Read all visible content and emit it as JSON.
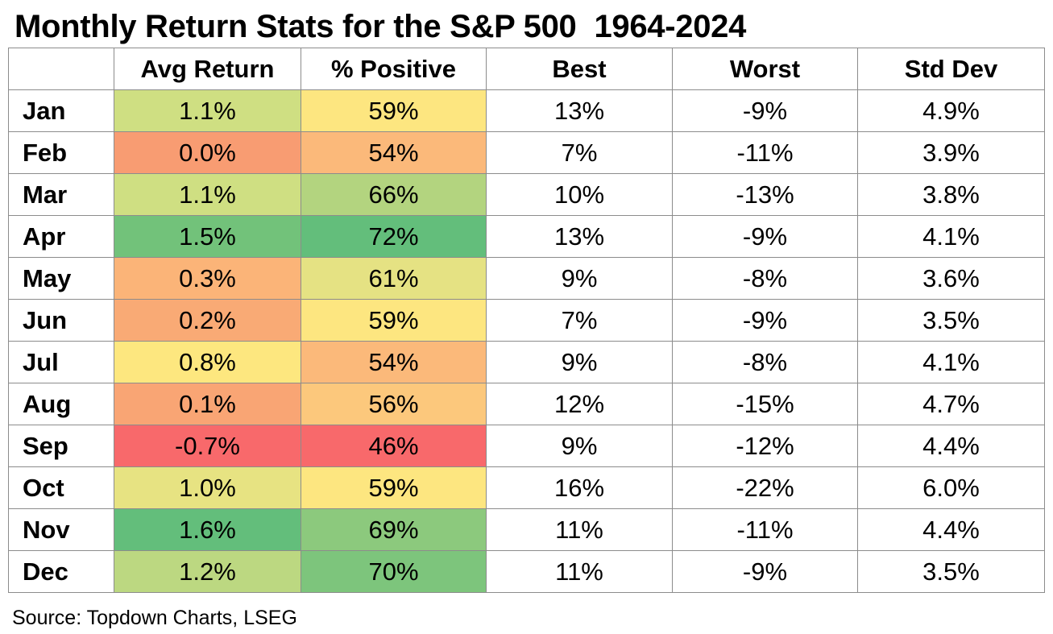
{
  "title": {
    "main": "Monthly Return Stats for the S&P 500",
    "range": "1964-2024"
  },
  "source": "Source: Topdown Charts, LSEG",
  "chart_data": {
    "type": "table",
    "columns": [
      "",
      "Avg Return",
      "% Positive",
      "Best",
      "Worst",
      "Std Dev"
    ],
    "rows": [
      {
        "month": "Jan",
        "avg_return": "1.1%",
        "pct_positive": "59%",
        "best": "13%",
        "worst": "-9%",
        "std_dev": "4.9%",
        "avg_color": "#cfdf82",
        "pos_color": "#fde680"
      },
      {
        "month": "Feb",
        "avg_return": "0.0%",
        "pct_positive": "54%",
        "best": "7%",
        "worst": "-11%",
        "std_dev": "3.9%",
        "avg_color": "#f89c72",
        "pos_color": "#fbb97a"
      },
      {
        "month": "Mar",
        "avg_return": "1.1%",
        "pct_positive": "66%",
        "best": "10%",
        "worst": "-13%",
        "std_dev": "3.8%",
        "avg_color": "#cfdf82",
        "pos_color": "#b3d47f"
      },
      {
        "month": "Apr",
        "avg_return": "1.5%",
        "pct_positive": "72%",
        "best": "13%",
        "worst": "-9%",
        "std_dev": "4.1%",
        "avg_color": "#72c27a",
        "pos_color": "#63be7b"
      },
      {
        "month": "May",
        "avg_return": "0.3%",
        "pct_positive": "61%",
        "best": "9%",
        "worst": "-8%",
        "std_dev": "3.6%",
        "avg_color": "#fbb478",
        "pos_color": "#e5e283"
      },
      {
        "month": "Jun",
        "avg_return": "0.2%",
        "pct_positive": "59%",
        "best": "7%",
        "worst": "-9%",
        "std_dev": "3.5%",
        "avg_color": "#f9aa75",
        "pos_color": "#fde680"
      },
      {
        "month": "Jul",
        "avg_return": "0.8%",
        "pct_positive": "54%",
        "best": "9%",
        "worst": "-8%",
        "std_dev": "4.1%",
        "avg_color": "#fde77f",
        "pos_color": "#fbb97a"
      },
      {
        "month": "Aug",
        "avg_return": "0.1%",
        "pct_positive": "56%",
        "best": "12%",
        "worst": "-15%",
        "std_dev": "4.7%",
        "avg_color": "#f9a574",
        "pos_color": "#fcc87c"
      },
      {
        "month": "Sep",
        "avg_return": "-0.7%",
        "pct_positive": "46%",
        "best": "9%",
        "worst": "-12%",
        "std_dev": "4.4%",
        "avg_color": "#f8696b",
        "pos_color": "#f8696b"
      },
      {
        "month": "Oct",
        "avg_return": "1.0%",
        "pct_positive": "59%",
        "best": "16%",
        "worst": "-22%",
        "std_dev": "6.0%",
        "avg_color": "#e7e382",
        "pos_color": "#fde680"
      },
      {
        "month": "Nov",
        "avg_return": "1.6%",
        "pct_positive": "69%",
        "best": "11%",
        "worst": "-11%",
        "std_dev": "4.4%",
        "avg_color": "#63be7b",
        "pos_color": "#8cc97d"
      },
      {
        "month": "Dec",
        "avg_return": "1.2%",
        "pct_positive": "70%",
        "best": "11%",
        "worst": "-9%",
        "std_dev": "3.5%",
        "avg_color": "#bcd881",
        "pos_color": "#7dc57c"
      }
    ]
  }
}
